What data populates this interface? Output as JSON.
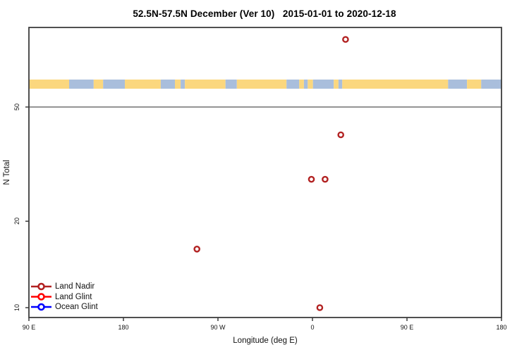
{
  "chart_data": {
    "type": "scatter",
    "title": "52.5N-57.5N December (Ver 10)   2015-01-01 to 2020-12-18",
    "xlabel": "Longitude (deg E)",
    "ylabel": "N Total",
    "x_axis": {
      "tick_labels": [
        "90 E",
        "180",
        "90 W",
        "0",
        "90 E",
        "180"
      ],
      "description": "longitude axis wraps eastward from 90E around the globe to 180, evenly spaced ticks every 90 degrees"
    },
    "y_axis": {
      "scale": "log",
      "ticks": [
        10,
        20,
        50
      ],
      "tick_labels": [
        "10",
        "20",
        "50"
      ]
    },
    "reference_line_y": 50,
    "grid": "off",
    "legend": {
      "position": "bottom-left",
      "entries": [
        "Land Nadir",
        "Land Glint",
        "Ocean Glint"
      ]
    },
    "series": [
      {
        "name": "Land Nadir",
        "color": "#B22222",
        "points": [
          {
            "lon_deg_e": 31.5,
            "n": 86
          },
          {
            "lon_deg_e": 27,
            "n": 40
          },
          {
            "lon_deg_e": -1,
            "n": 28
          },
          {
            "lon_deg_e": 12,
            "n": 28
          },
          {
            "lon_deg_e": -110,
            "n": 16
          },
          {
            "lon_deg_e": 7,
            "n": 10
          }
        ]
      },
      {
        "name": "Land Glint",
        "color": "#FF0000",
        "points": []
      },
      {
        "name": "Ocean Glint",
        "color": "#0000FF",
        "points": []
      }
    ],
    "map_strip": {
      "land_color": "#FBD77E",
      "ocean_color": "#A9BEDC",
      "segments": [
        {
          "from": 0.0,
          "to": 0.085,
          "type": "land"
        },
        {
          "from": 0.085,
          "to": 0.137,
          "type": "ocean"
        },
        {
          "from": 0.137,
          "to": 0.157,
          "type": "land"
        },
        {
          "from": 0.157,
          "to": 0.203,
          "type": "ocean"
        },
        {
          "from": 0.203,
          "to": 0.279,
          "type": "land"
        },
        {
          "from": 0.279,
          "to": 0.309,
          "type": "ocean"
        },
        {
          "from": 0.309,
          "to": 0.321,
          "type": "land"
        },
        {
          "from": 0.321,
          "to": 0.33,
          "type": "ocean"
        },
        {
          "from": 0.33,
          "to": 0.416,
          "type": "land"
        },
        {
          "from": 0.416,
          "to": 0.44,
          "type": "ocean"
        },
        {
          "from": 0.44,
          "to": 0.545,
          "type": "land"
        },
        {
          "from": 0.545,
          "to": 0.572,
          "type": "ocean"
        },
        {
          "from": 0.572,
          "to": 0.582,
          "type": "land"
        },
        {
          "from": 0.582,
          "to": 0.59,
          "type": "ocean"
        },
        {
          "from": 0.59,
          "to": 0.601,
          "type": "land"
        },
        {
          "from": 0.601,
          "to": 0.645,
          "type": "ocean"
        },
        {
          "from": 0.645,
          "to": 0.655,
          "type": "land"
        },
        {
          "from": 0.655,
          "to": 0.663,
          "type": "ocean"
        },
        {
          "from": 0.663,
          "to": 0.887,
          "type": "land"
        },
        {
          "from": 0.887,
          "to": 0.927,
          "type": "ocean"
        },
        {
          "from": 0.927,
          "to": 0.957,
          "type": "land"
        },
        {
          "from": 0.957,
          "to": 1.0,
          "type": "ocean"
        }
      ]
    }
  }
}
